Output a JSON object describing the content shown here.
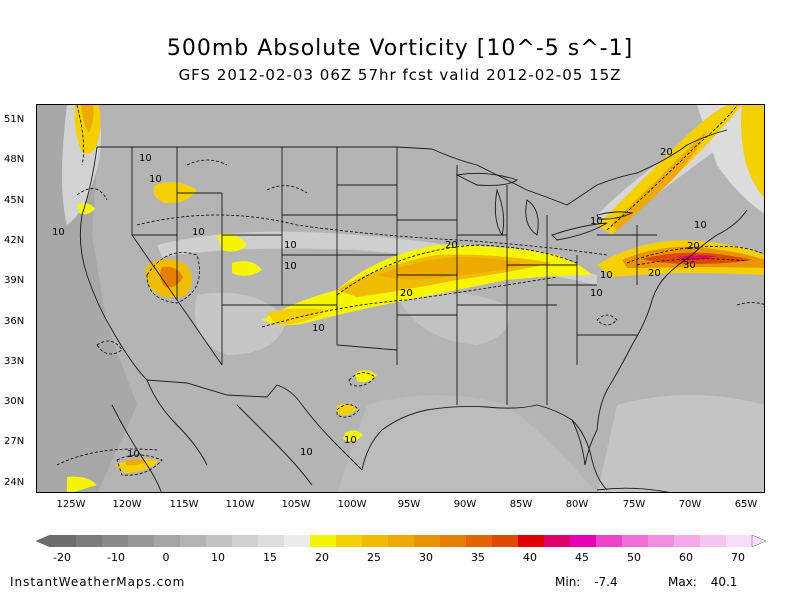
{
  "header": {
    "title": "500mb Absolute Vorticity [10^-5 s^-1]",
    "subtitle": "GFS 2012-02-03 06Z 57hr fcst valid 2012-02-05 15Z"
  },
  "map": {
    "lat_labels": [
      "51N",
      "48N",
      "45N",
      "42N",
      "39N",
      "36N",
      "33N",
      "30N",
      "27N",
      "24N"
    ],
    "lon_labels": [
      "125W",
      "120W",
      "115W",
      "110W",
      "105W",
      "100W",
      "95W",
      "90W",
      "85W",
      "80W",
      "75W",
      "70W",
      "65W"
    ],
    "contour_labels": [
      "10",
      "10",
      "10",
      "10",
      "10",
      "10",
      "10",
      "10",
      "10",
      "10",
      "10",
      "10",
      "10",
      "10",
      "20",
      "20",
      "20",
      "20",
      "20",
      "30"
    ]
  },
  "colorbar": {
    "labels": [
      "-20",
      "-10",
      "0",
      "10",
      "15",
      "20",
      "25",
      "30",
      "35",
      "40",
      "45",
      "50",
      "60",
      "70"
    ],
    "colors": [
      "#6e6e6e",
      "#7c7c7c",
      "#8a8a8a",
      "#989898",
      "#a6a6a6",
      "#b4b4b4",
      "#c2c2c2",
      "#d0d0d0",
      "#dedede",
      "#ececec",
      "#f6f600",
      "#f5d000",
      "#f0bc00",
      "#eeaa00",
      "#e99400",
      "#e67e00",
      "#e36400",
      "#e04a00",
      "#e20000",
      "#e4006a",
      "#ea00b4",
      "#ee44cc",
      "#f06ed6",
      "#f28ee0",
      "#f4aaea",
      "#f6c6f0",
      "#f8ddf6"
    ]
  },
  "footer": {
    "site": "InstantWeatherMaps.com",
    "min_label": "Min:",
    "min_value": "-7.4",
    "max_label": "Max:",
    "max_value": "40.1"
  }
}
